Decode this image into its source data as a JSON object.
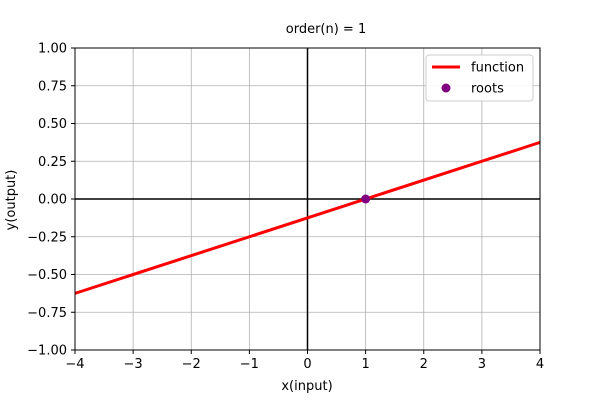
{
  "chart_data": {
    "type": "line",
    "title": "order(n) = 1",
    "xlabel": "x(input)",
    "ylabel": "y(output)",
    "xlim": [
      -4,
      4
    ],
    "ylim": [
      -1,
      1
    ],
    "x_ticks": [
      "−4",
      "−3",
      "−2",
      "−1",
      "0",
      "1",
      "2",
      "3",
      "4"
    ],
    "x_tick_values": [
      -4,
      -3,
      -2,
      -1,
      0,
      1,
      2,
      3,
      4
    ],
    "y_ticks": [
      "−1.00",
      "−0.75",
      "−0.50",
      "−0.25",
      "0.00",
      "0.25",
      "0.50",
      "0.75",
      "1.00"
    ],
    "y_tick_values": [
      -1,
      -0.75,
      -0.5,
      -0.25,
      0,
      0.25,
      0.5,
      0.75,
      1
    ],
    "grid": true,
    "legend_position": "top-right",
    "series": [
      {
        "name": "function",
        "kind": "line",
        "color": "#ff0000",
        "x": [
          -4,
          4
        ],
        "y": [
          -0.625,
          0.375
        ]
      },
      {
        "name": "roots",
        "kind": "scatter",
        "color": "#800080",
        "x": [
          1
        ],
        "y": [
          0
        ]
      }
    ]
  }
}
